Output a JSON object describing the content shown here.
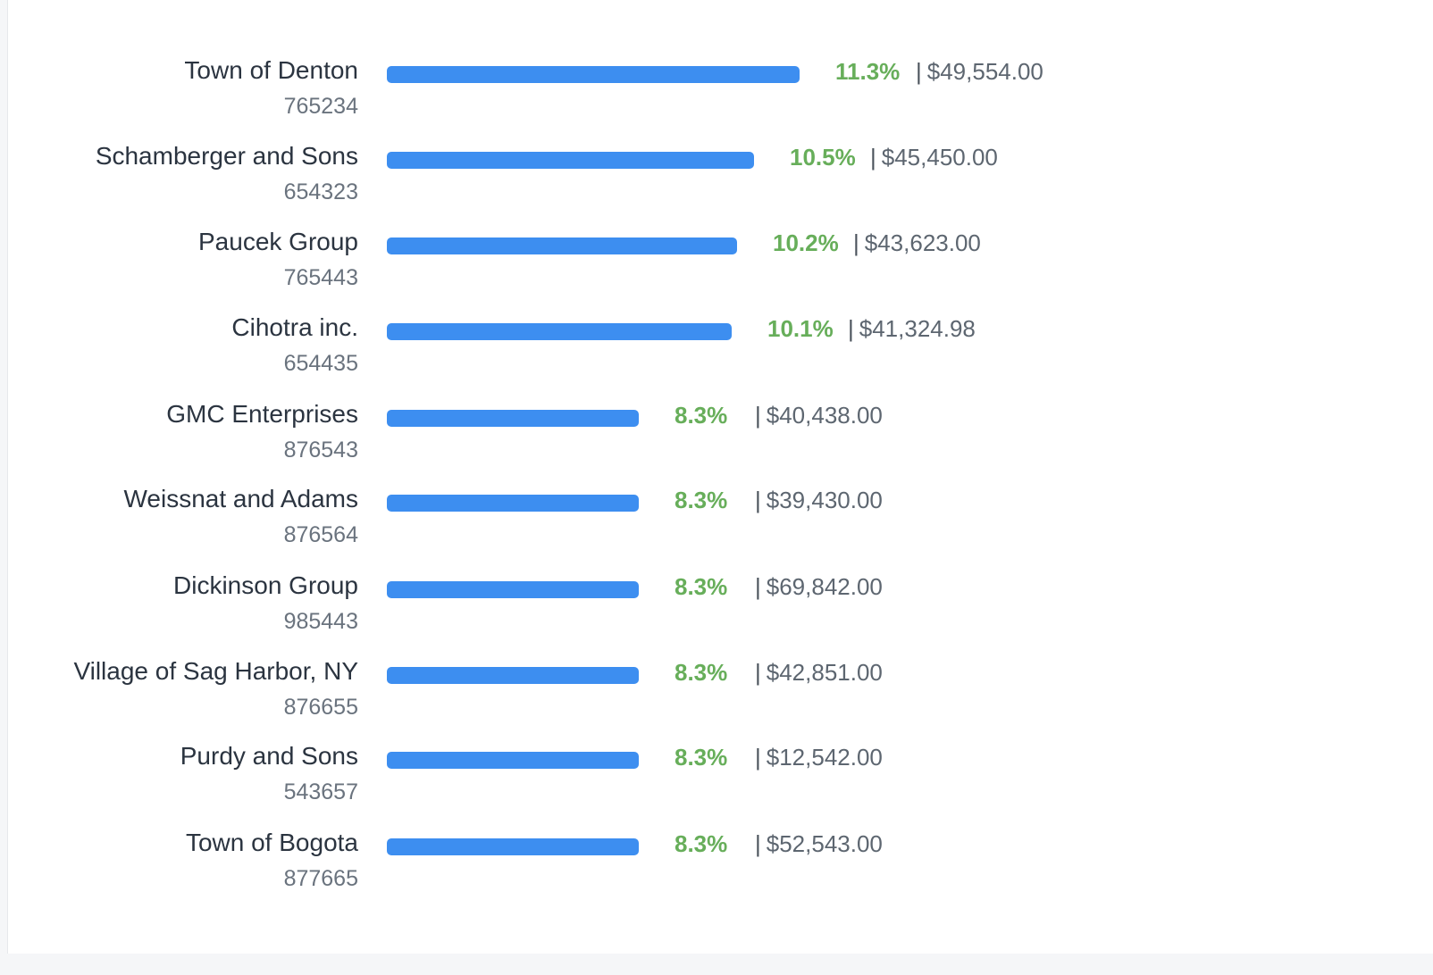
{
  "ranking": {
    "max_share": 11.3,
    "accent_color": "#3d8ef0",
    "percent_color": "#67ae5a",
    "separator": "|",
    "rows": [
      {
        "name": "Town of Denton",
        "code": "765234",
        "percent": "11.3%",
        "share": 11.3,
        "amount": "$49,554.00"
      },
      {
        "name": "Schamberger and Sons",
        "code": "654323",
        "percent": "10.5%",
        "share": 10.5,
        "amount": "$45,450.00"
      },
      {
        "name": "Paucek Group",
        "code": "765443",
        "percent": "10.2%",
        "share": 10.2,
        "amount": "$43,623.00"
      },
      {
        "name": "Cihotra inc.",
        "code": "654435",
        "percent": "10.1%",
        "share": 10.1,
        "amount": "$41,324.98"
      },
      {
        "name": "GMC Enterprises",
        "code": "876543",
        "percent": "8.3%",
        "share": 8.3,
        "amount": "$40,438.00"
      },
      {
        "name": "Weissnat and Adams",
        "code": "876564",
        "percent": "8.3%",
        "share": 8.3,
        "amount": "$39,430.00"
      },
      {
        "name": "Dickinson Group",
        "code": "985443",
        "percent": "8.3%",
        "share": 8.3,
        "amount": "$69,842.00"
      },
      {
        "name": "Village of Sag Harbor, NY",
        "code": "876655",
        "percent": "8.3%",
        "share": 8.3,
        "amount": "$42,851.00"
      },
      {
        "name": "Purdy and Sons",
        "code": "543657",
        "percent": "8.3%",
        "share": 8.3,
        "amount": "$12,542.00"
      },
      {
        "name": "Town of Bogota",
        "code": "877665",
        "percent": "8.3%",
        "share": 8.3,
        "amount": "$52,543.00"
      }
    ]
  }
}
